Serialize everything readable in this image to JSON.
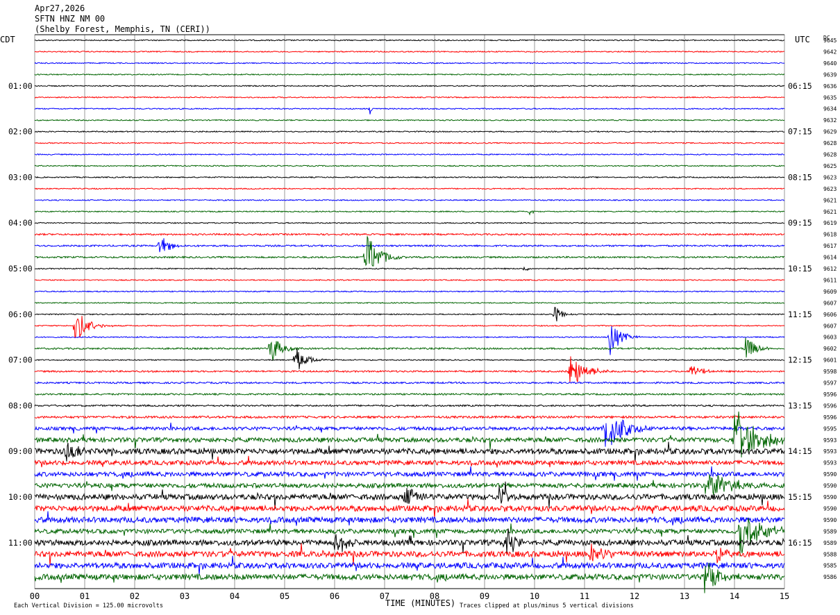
{
  "header": {
    "date": "Apr27,2026",
    "station": "SFTN HNZ NM 00",
    "location": "(Shelby Forest, Memphis, TN (CERI))"
  },
  "left_timezone": "CDT",
  "right_timezone": "UTC",
  "dc_label": "DC",
  "left_hour_labels": [
    "01:00",
    "02:00",
    "03:00",
    "04:00",
    "05:00",
    "06:00",
    "07:00",
    "08:00",
    "09:00",
    "10:00",
    "11:00"
  ],
  "right_hour_labels": [
    "06:15",
    "07:15",
    "08:15",
    "09:15",
    "10:15",
    "11:15",
    "12:15",
    "13:15",
    "14:15",
    "15:15",
    "16:15"
  ],
  "footer": {
    "scale_note": "Each Vertical Division =  125.00 microvolts",
    "xlabel": "TIME (MINUTES)",
    "clip_note": "Traces clipped at plus/minus 5 vertical divisions"
  },
  "colors": {
    "trace_cycle": [
      "#000000",
      "#ff0000",
      "#0000ff",
      "#006400"
    ],
    "grid": "#808080"
  },
  "chart_data": {
    "type": "line",
    "title": "SFTN HNZ NM 00",
    "xlabel": "TIME (MINUTES)",
    "xlim": [
      0,
      15
    ],
    "x_ticks": [
      "00",
      "01",
      "02",
      "03",
      "04",
      "05",
      "06",
      "07",
      "08",
      "09",
      "10",
      "11",
      "12",
      "13",
      "14",
      "15"
    ],
    "rows": 48,
    "minutes_per_row": 15,
    "dc_offsets": [
      9645,
      9642,
      9640,
      9639,
      9636,
      9635,
      9634,
      9632,
      9629,
      9628,
      9628,
      9625,
      9623,
      9623,
      9621,
      9621,
      9619,
      9618,
      9617,
      9614,
      9612,
      9611,
      9609,
      9607,
      9606,
      9607,
      9603,
      9602,
      9601,
      9598,
      9597,
      9596,
      9596,
      9596,
      9595,
      9593,
      9593,
      9593,
      9590,
      9590,
      9590,
      9590,
      9590,
      9589,
      9589,
      9588,
      9585,
      9586
    ],
    "noise_level": [
      1,
      1,
      1,
      1,
      1,
      1,
      1,
      1,
      1,
      1,
      1,
      1,
      1,
      1,
      1,
      1,
      1,
      1.5,
      1.5,
      1.5,
      1,
      1,
      1,
      1,
      1,
      1,
      1,
      1.5,
      1,
      1.5,
      1.5,
      1.5,
      1.5,
      2,
      3,
      4,
      5,
      4,
      4,
      4,
      5,
      5,
      5,
      4,
      5,
      5,
      5,
      5
    ],
    "events": [
      {
        "row": 6,
        "minute": 6.7,
        "amp": 10,
        "dur": 0.06
      },
      {
        "row": 15,
        "minute": 9.9,
        "amp": 10,
        "dur": 0.06
      },
      {
        "row": 18,
        "minute": 2.5,
        "amp": 20,
        "dur": 0.25
      },
      {
        "row": 19,
        "minute": 6.6,
        "amp": 40,
        "dur": 0.4
      },
      {
        "row": 20,
        "minute": 9.8,
        "amp": 12,
        "dur": 0.05
      },
      {
        "row": 25,
        "minute": 0.8,
        "amp": 28,
        "dur": 0.35
      },
      {
        "row": 24,
        "minute": 10.4,
        "amp": 14,
        "dur": 0.2
      },
      {
        "row": 26,
        "minute": 11.5,
        "amp": 28,
        "dur": 0.3
      },
      {
        "row": 27,
        "minute": 4.7,
        "amp": 28,
        "dur": 0.3
      },
      {
        "row": 27,
        "minute": 14.2,
        "amp": 20,
        "dur": 0.3
      },
      {
        "row": 28,
        "minute": 5.2,
        "amp": 24,
        "dur": 0.3
      },
      {
        "row": 29,
        "minute": 10.7,
        "amp": 30,
        "dur": 0.4
      },
      {
        "row": 29,
        "minute": 13.1,
        "amp": 14,
        "dur": 0.3
      },
      {
        "row": 34,
        "minute": 11.4,
        "amp": 40,
        "dur": 0.5
      },
      {
        "row": 35,
        "minute": 14.0,
        "amp": 40,
        "dur": 0.7
      },
      {
        "row": 36,
        "minute": 0.6,
        "amp": 20,
        "dur": 0.3
      },
      {
        "row": 39,
        "minute": 13.5,
        "amp": 20,
        "dur": 0.6
      },
      {
        "row": 40,
        "minute": 7.4,
        "amp": 22,
        "dur": 0.3
      },
      {
        "row": 40,
        "minute": 9.3,
        "amp": 20,
        "dur": 0.2
      },
      {
        "row": 43,
        "minute": 14.1,
        "amp": 40,
        "dur": 0.6
      },
      {
        "row": 44,
        "minute": 6.0,
        "amp": 22,
        "dur": 0.3
      },
      {
        "row": 44,
        "minute": 9.4,
        "amp": 26,
        "dur": 0.3
      },
      {
        "row": 45,
        "minute": 11.1,
        "amp": 18,
        "dur": 0.4
      },
      {
        "row": 45,
        "minute": 13.6,
        "amp": 16,
        "dur": 0.3
      },
      {
        "row": 47,
        "minute": 13.4,
        "amp": 26,
        "dur": 0.4
      }
    ]
  }
}
